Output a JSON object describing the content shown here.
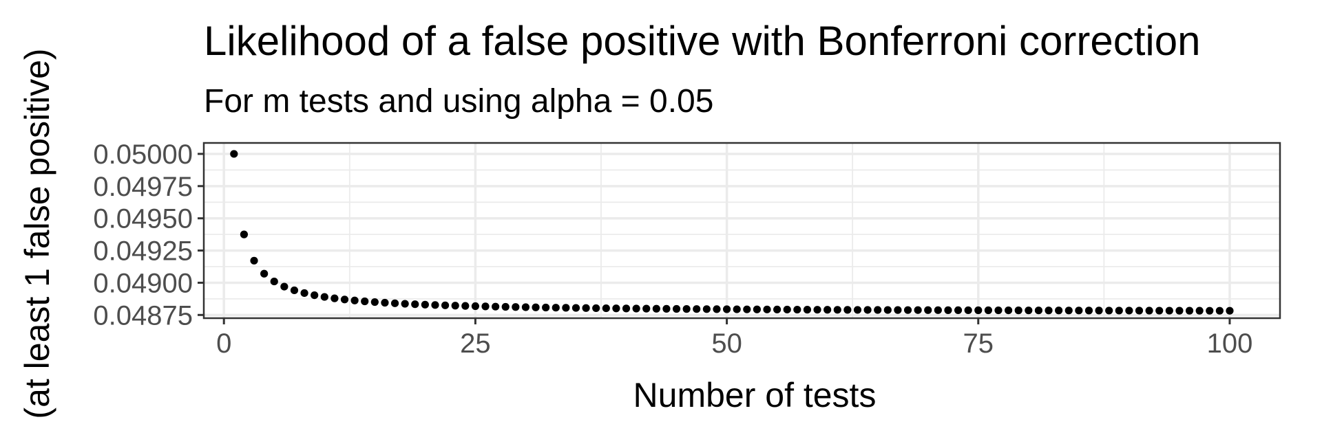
{
  "chart_data": {
    "type": "scatter",
    "title": "Likelihood of a false positive with Bonferroni correction",
    "subtitle": "For m tests and using alpha = 0.05",
    "xlabel": "Number of tests",
    "ylabel": "(at least 1 false positive)",
    "xlim": [
      -2,
      105
    ],
    "ylim": [
      0.048725,
      0.050085
    ],
    "x_ticks": [
      0,
      25,
      50,
      75,
      100
    ],
    "x_tick_labels": [
      "0",
      "25",
      "50",
      "75",
      "100"
    ],
    "y_ticks": [
      0.04875,
      0.049,
      0.04925,
      0.0495,
      0.04975,
      0.05
    ],
    "y_tick_labels": [
      "0.04875",
      "0.04900",
      "0.04925",
      "0.04950",
      "0.04975",
      "0.05000"
    ],
    "formula": "1 - (1 - 0.05/m)^m",
    "x_start": 1,
    "x_end": 100,
    "grid": true,
    "legend": "none",
    "point_color": "#000000",
    "background": "#ffffff",
    "grid_color": "#ebebeb",
    "border_color": "#333333"
  }
}
